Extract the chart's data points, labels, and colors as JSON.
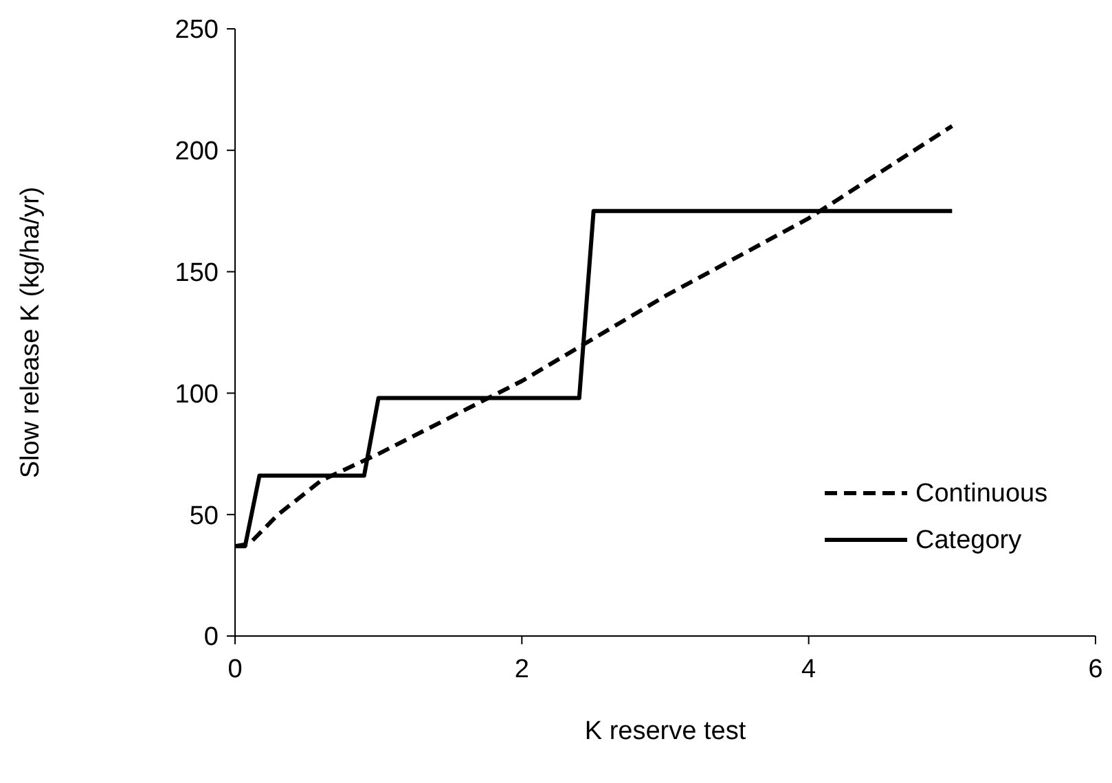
{
  "chart_data": {
    "type": "line",
    "xlabel": "K reserve test",
    "ylabel": "Slow release K (kg/ha/yr)",
    "xlim": [
      0,
      6
    ],
    "xticks": [
      0,
      2,
      4,
      6
    ],
    "ylim": [
      0,
      250
    ],
    "yticks": [
      0,
      50,
      100,
      150,
      200,
      250
    ],
    "grid": false,
    "legend": "bottom right",
    "marker": "none",
    "series": [
      {
        "name": "Continuous",
        "color": "#000000",
        "line_style": "dashed",
        "x": [
          0,
          0.1,
          0.3,
          0.6,
          1,
          2,
          3,
          4,
          5
        ],
        "values": [
          37,
          38,
          50,
          64,
          75,
          105,
          140,
          172,
          210
        ]
      },
      {
        "name": "Category",
        "color": "#000000",
        "line_style": "solid",
        "x": [
          0,
          0.07,
          0.17,
          0.9,
          1,
          2.4,
          2.5,
          5
        ],
        "values": [
          37,
          37,
          66,
          66,
          98,
          98,
          175,
          175
        ]
      }
    ]
  }
}
